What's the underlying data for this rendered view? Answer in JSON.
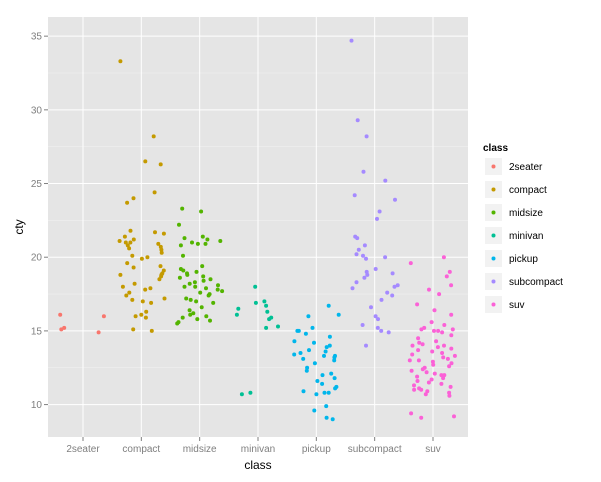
{
  "chart_data": {
    "type": "scatter",
    "title": "",
    "xlabel": "class",
    "ylabel": "cty",
    "categories": [
      "2seater",
      "compact",
      "midsize",
      "minivan",
      "pickup",
      "subcompact",
      "suv"
    ],
    "y_ticks": [
      10,
      15,
      20,
      25,
      30,
      35
    ],
    "ylim": [
      7.8,
      36.3
    ],
    "grid": true,
    "panel_background": "#e5e5e5",
    "legend": {
      "title": "class",
      "placement": "right",
      "background": "#f2f2f2"
    },
    "series": [
      {
        "name": "2seater",
        "color": "#F8766D",
        "points": [
          [
            "2seater",
            15.2
          ],
          [
            "2seater",
            14.9
          ],
          [
            "2seater",
            16.0
          ],
          [
            "2seater",
            15.1
          ],
          [
            "2seater",
            16.1
          ]
        ]
      },
      {
        "name": "compact",
        "color": "#C49A00",
        "points": [
          [
            "compact",
            33.3
          ],
          [
            "compact",
            28.2
          ],
          [
            "compact",
            26.5
          ],
          [
            "compact",
            26.3
          ],
          [
            "compact",
            24.4
          ],
          [
            "compact",
            24.0
          ],
          [
            "compact",
            23.7
          ],
          [
            "compact",
            21.8
          ],
          [
            "compact",
            21.7
          ],
          [
            "compact",
            21.6
          ],
          [
            "compact",
            21.4
          ],
          [
            "compact",
            21.2
          ],
          [
            "compact",
            21.1
          ],
          [
            "compact",
            21.0
          ],
          [
            "compact",
            21.0
          ],
          [
            "compact",
            20.9
          ],
          [
            "compact",
            20.8
          ],
          [
            "compact",
            20.7
          ],
          [
            "compact",
            20.6
          ],
          [
            "compact",
            20.5
          ],
          [
            "compact",
            20.3
          ],
          [
            "compact",
            20.1
          ],
          [
            "compact",
            20.0
          ],
          [
            "compact",
            19.9
          ],
          [
            "compact",
            19.6
          ],
          [
            "compact",
            19.4
          ],
          [
            "compact",
            19.3
          ],
          [
            "compact",
            19.1
          ],
          [
            "compact",
            18.9
          ],
          [
            "compact",
            18.8
          ],
          [
            "compact",
            18.8
          ],
          [
            "compact",
            18.7
          ],
          [
            "compact",
            18.5
          ],
          [
            "compact",
            18.2
          ],
          [
            "compact",
            18.0
          ],
          [
            "compact",
            17.9
          ],
          [
            "compact",
            17.8
          ],
          [
            "compact",
            17.6
          ],
          [
            "compact",
            17.4
          ],
          [
            "compact",
            17.2
          ],
          [
            "compact",
            17.1
          ],
          [
            "compact",
            17.0
          ],
          [
            "compact",
            16.9
          ],
          [
            "compact",
            16.3
          ],
          [
            "compact",
            16.1
          ],
          [
            "compact",
            16.0
          ],
          [
            "compact",
            15.9
          ],
          [
            "compact",
            15.1
          ],
          [
            "compact",
            15.0
          ]
        ]
      },
      {
        "name": "midsize",
        "color": "#53B400",
        "points": [
          [
            "midsize",
            23.3
          ],
          [
            "midsize",
            23.1
          ],
          [
            "midsize",
            22.2
          ],
          [
            "midsize",
            21.4
          ],
          [
            "midsize",
            21.3
          ],
          [
            "midsize",
            21.2
          ],
          [
            "midsize",
            21.1
          ],
          [
            "midsize",
            21.0
          ],
          [
            "midsize",
            20.9
          ],
          [
            "midsize",
            20.9
          ],
          [
            "midsize",
            20.8
          ],
          [
            "midsize",
            20.1
          ],
          [
            "midsize",
            19.4
          ],
          [
            "midsize",
            19.2
          ],
          [
            "midsize",
            19.1
          ],
          [
            "midsize",
            19.0
          ],
          [
            "midsize",
            18.9
          ],
          [
            "midsize",
            18.8
          ],
          [
            "midsize",
            18.7
          ],
          [
            "midsize",
            18.6
          ],
          [
            "midsize",
            18.5
          ],
          [
            "midsize",
            18.4
          ],
          [
            "midsize",
            18.3
          ],
          [
            "midsize",
            18.2
          ],
          [
            "midsize",
            18.1
          ],
          [
            "midsize",
            18.0
          ],
          [
            "midsize",
            18.0
          ],
          [
            "midsize",
            17.9
          ],
          [
            "midsize",
            17.8
          ],
          [
            "midsize",
            17.7
          ],
          [
            "midsize",
            17.6
          ],
          [
            "midsize",
            17.5
          ],
          [
            "midsize",
            17.4
          ],
          [
            "midsize",
            17.2
          ],
          [
            "midsize",
            17.1
          ],
          [
            "midsize",
            17.0
          ],
          [
            "midsize",
            16.9
          ],
          [
            "midsize",
            16.6
          ],
          [
            "midsize",
            16.4
          ],
          [
            "midsize",
            16.2
          ],
          [
            "midsize",
            16.1
          ],
          [
            "midsize",
            16.0
          ],
          [
            "midsize",
            15.9
          ],
          [
            "midsize",
            15.8
          ],
          [
            "midsize",
            15.7
          ],
          [
            "midsize",
            15.6
          ],
          [
            "midsize",
            15.5
          ]
        ]
      },
      {
        "name": "minivan",
        "color": "#00C094",
        "points": [
          [
            "minivan",
            18.0
          ],
          [
            "minivan",
            17.0
          ],
          [
            "minivan",
            16.9
          ],
          [
            "minivan",
            16.7
          ],
          [
            "minivan",
            16.5
          ],
          [
            "minivan",
            16.3
          ],
          [
            "minivan",
            16.1
          ],
          [
            "minivan",
            15.9
          ],
          [
            "minivan",
            15.8
          ],
          [
            "minivan",
            15.3
          ],
          [
            "minivan",
            15.2
          ],
          [
            "minivan",
            10.8
          ],
          [
            "minivan",
            10.7
          ]
        ]
      },
      {
        "name": "pickup",
        "color": "#00B6EB",
        "points": [
          [
            "pickup",
            16.7
          ],
          [
            "pickup",
            16.1
          ],
          [
            "pickup",
            16.0
          ],
          [
            "pickup",
            15.2
          ],
          [
            "pickup",
            15.0
          ],
          [
            "pickup",
            15.0
          ],
          [
            "pickup",
            14.8
          ],
          [
            "pickup",
            14.6
          ],
          [
            "pickup",
            14.3
          ],
          [
            "pickup",
            14.2
          ],
          [
            "pickup",
            14.0
          ],
          [
            "pickup",
            13.9
          ],
          [
            "pickup",
            13.7
          ],
          [
            "pickup",
            13.6
          ],
          [
            "pickup",
            13.5
          ],
          [
            "pickup",
            13.4
          ],
          [
            "pickup",
            13.3
          ],
          [
            "pickup",
            13.3
          ],
          [
            "pickup",
            13.2
          ],
          [
            "pickup",
            13.1
          ],
          [
            "pickup",
            13.0
          ],
          [
            "pickup",
            12.8
          ],
          [
            "pickup",
            12.5
          ],
          [
            "pickup",
            12.3
          ],
          [
            "pickup",
            12.1
          ],
          [
            "pickup",
            12.0
          ],
          [
            "pickup",
            11.8
          ],
          [
            "pickup",
            11.6
          ],
          [
            "pickup",
            11.4
          ],
          [
            "pickup",
            11.2
          ],
          [
            "pickup",
            11.1
          ],
          [
            "pickup",
            10.9
          ],
          [
            "pickup",
            10.8
          ],
          [
            "pickup",
            10.8
          ],
          [
            "pickup",
            10.7
          ],
          [
            "pickup",
            9.9
          ],
          [
            "pickup",
            9.6
          ],
          [
            "pickup",
            9.1
          ],
          [
            "pickup",
            9.0
          ]
        ]
      },
      {
        "name": "subcompact",
        "color": "#A58AFF",
        "points": [
          [
            "subcompact",
            34.7
          ],
          [
            "subcompact",
            29.3
          ],
          [
            "subcompact",
            28.2
          ],
          [
            "subcompact",
            25.8
          ],
          [
            "subcompact",
            25.2
          ],
          [
            "subcompact",
            24.2
          ],
          [
            "subcompact",
            23.9
          ],
          [
            "subcompact",
            23.1
          ],
          [
            "subcompact",
            22.6
          ],
          [
            "subcompact",
            21.4
          ],
          [
            "subcompact",
            21.3
          ],
          [
            "subcompact",
            20.8
          ],
          [
            "subcompact",
            20.5
          ],
          [
            "subcompact",
            20.2
          ],
          [
            "subcompact",
            20.1
          ],
          [
            "subcompact",
            20.0
          ],
          [
            "subcompact",
            19.9
          ],
          [
            "subcompact",
            19.2
          ],
          [
            "subcompact",
            19.0
          ],
          [
            "subcompact",
            18.9
          ],
          [
            "subcompact",
            18.8
          ],
          [
            "subcompact",
            18.6
          ],
          [
            "subcompact",
            18.3
          ],
          [
            "subcompact",
            18.1
          ],
          [
            "subcompact",
            18.0
          ],
          [
            "subcompact",
            17.9
          ],
          [
            "subcompact",
            17.6
          ],
          [
            "subcompact",
            17.4
          ],
          [
            "subcompact",
            17.1
          ],
          [
            "subcompact",
            16.6
          ],
          [
            "subcompact",
            16.0
          ],
          [
            "subcompact",
            15.8
          ],
          [
            "subcompact",
            15.4
          ],
          [
            "subcompact",
            15.2
          ],
          [
            "subcompact",
            15.0
          ],
          [
            "subcompact",
            14.9
          ],
          [
            "subcompact",
            14.0
          ]
        ]
      },
      {
        "name": "suv",
        "color": "#FB61D7",
        "points": [
          [
            "suv",
            20.0
          ],
          [
            "suv",
            19.6
          ],
          [
            "suv",
            19.0
          ],
          [
            "suv",
            18.7
          ],
          [
            "suv",
            18.1
          ],
          [
            "suv",
            17.8
          ],
          [
            "suv",
            17.5
          ],
          [
            "suv",
            16.8
          ],
          [
            "suv",
            16.4
          ],
          [
            "suv",
            16.1
          ],
          [
            "suv",
            15.6
          ],
          [
            "suv",
            15.4
          ],
          [
            "suv",
            15.2
          ],
          [
            "suv",
            15.1
          ],
          [
            "suv",
            15.1
          ],
          [
            "suv",
            15.0
          ],
          [
            "suv",
            15.0
          ],
          [
            "suv",
            14.9
          ],
          [
            "suv",
            14.7
          ],
          [
            "suv",
            14.5
          ],
          [
            "suv",
            14.3
          ],
          [
            "suv",
            14.2
          ],
          [
            "suv",
            14.1
          ],
          [
            "suv",
            14.0
          ],
          [
            "suv",
            14.0
          ],
          [
            "suv",
            13.9
          ],
          [
            "suv",
            13.8
          ],
          [
            "suv",
            13.7
          ],
          [
            "suv",
            13.6
          ],
          [
            "suv",
            13.5
          ],
          [
            "suv",
            13.4
          ],
          [
            "suv",
            13.3
          ],
          [
            "suv",
            13.2
          ],
          [
            "suv",
            13.1
          ],
          [
            "suv",
            13.0
          ],
          [
            "suv",
            13.0
          ],
          [
            "suv",
            12.9
          ],
          [
            "suv",
            12.8
          ],
          [
            "suv",
            12.7
          ],
          [
            "suv",
            12.6
          ],
          [
            "suv",
            12.5
          ],
          [
            "suv",
            12.4
          ],
          [
            "suv",
            12.3
          ],
          [
            "suv",
            12.2
          ],
          [
            "suv",
            12.1
          ],
          [
            "suv",
            12.0
          ],
          [
            "suv",
            12.0
          ],
          [
            "suv",
            11.9
          ],
          [
            "suv",
            11.8
          ],
          [
            "suv",
            11.7
          ],
          [
            "suv",
            11.6
          ],
          [
            "suv",
            11.5
          ],
          [
            "suv",
            11.4
          ],
          [
            "suv",
            11.3
          ],
          [
            "suv",
            11.2
          ],
          [
            "suv",
            11.1
          ],
          [
            "suv",
            11.0
          ],
          [
            "suv",
            11.0
          ],
          [
            "suv",
            10.9
          ],
          [
            "suv",
            10.8
          ],
          [
            "suv",
            10.7
          ],
          [
            "suv",
            10.6
          ],
          [
            "suv",
            9.4
          ],
          [
            "suv",
            9.2
          ],
          [
            "suv",
            9.1
          ]
        ]
      }
    ]
  }
}
